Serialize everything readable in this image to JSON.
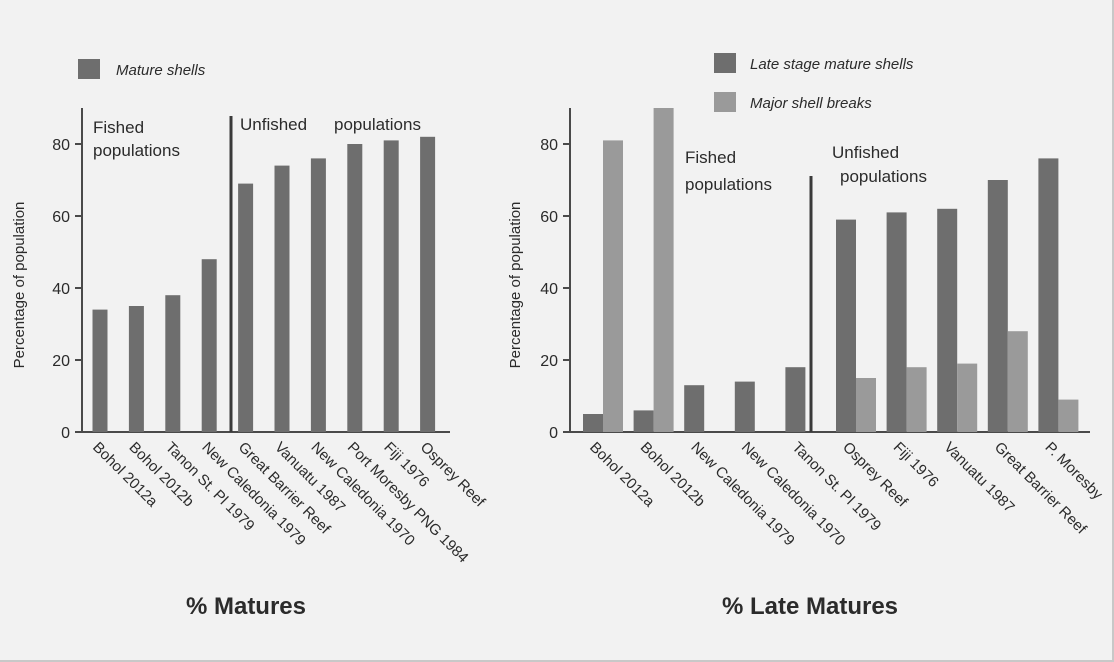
{
  "colors": {
    "dark": "#6e6e6e",
    "light": "#9a9a9a",
    "axis": "#4a4a4a",
    "background": "#f2f2f2"
  },
  "chart_data": [
    {
      "type": "bar",
      "title": "% Matures",
      "ylabel": "Percentage of population",
      "ylim": [
        0,
        90
      ],
      "yticks": [
        0,
        20,
        40,
        60,
        80
      ],
      "legend": [
        "Mature shells"
      ],
      "categories": [
        "Bohol 2012a",
        "Bohol 2012b",
        "Tanon St. Pl 1979",
        "New Caledonia 1979",
        "Great Barrier Reef",
        "Vanuatu 1987",
        "New Caledonia 1970",
        "Port Moresby PNG 1984",
        "Fiji 1976",
        "Osprey Reef"
      ],
      "series": [
        {
          "name": "Mature shells",
          "values": [
            34,
            35,
            38,
            48,
            69,
            74,
            76,
            80,
            81,
            82
          ]
        }
      ],
      "annotations": {
        "fished": [
          "Fished",
          "populations"
        ],
        "unfished": [
          "Unfished",
          "populations"
        ]
      }
    },
    {
      "type": "bar",
      "title": "% Late Matures",
      "ylabel": "Percentage of population",
      "ylim": [
        0,
        90
      ],
      "yticks": [
        0,
        20,
        40,
        60,
        80
      ],
      "legend": [
        "Late stage mature shells",
        "Major shell breaks"
      ],
      "categories": [
        "Bohol 2012a",
        "Bohol 2012b",
        "New Caledonia 1979",
        "New Caledonia 1970",
        "Tanon St. Pl 1979",
        "Osprey Reef",
        "Fiji 1976",
        "Vanuatu 1987",
        "Great Barrier Reef",
        "P. Moresby"
      ],
      "series": [
        {
          "name": "Late stage mature shells",
          "values": [
            5,
            6,
            13,
            14,
            18,
            59,
            61,
            62,
            70,
            76
          ]
        },
        {
          "name": "Major shell breaks",
          "values": [
            81,
            90,
            null,
            null,
            null,
            15,
            18,
            19,
            28,
            9
          ]
        }
      ],
      "annotations": {
        "fished": [
          "Fished",
          "populations"
        ],
        "unfished": [
          "Unfished",
          "populations"
        ]
      }
    }
  ]
}
